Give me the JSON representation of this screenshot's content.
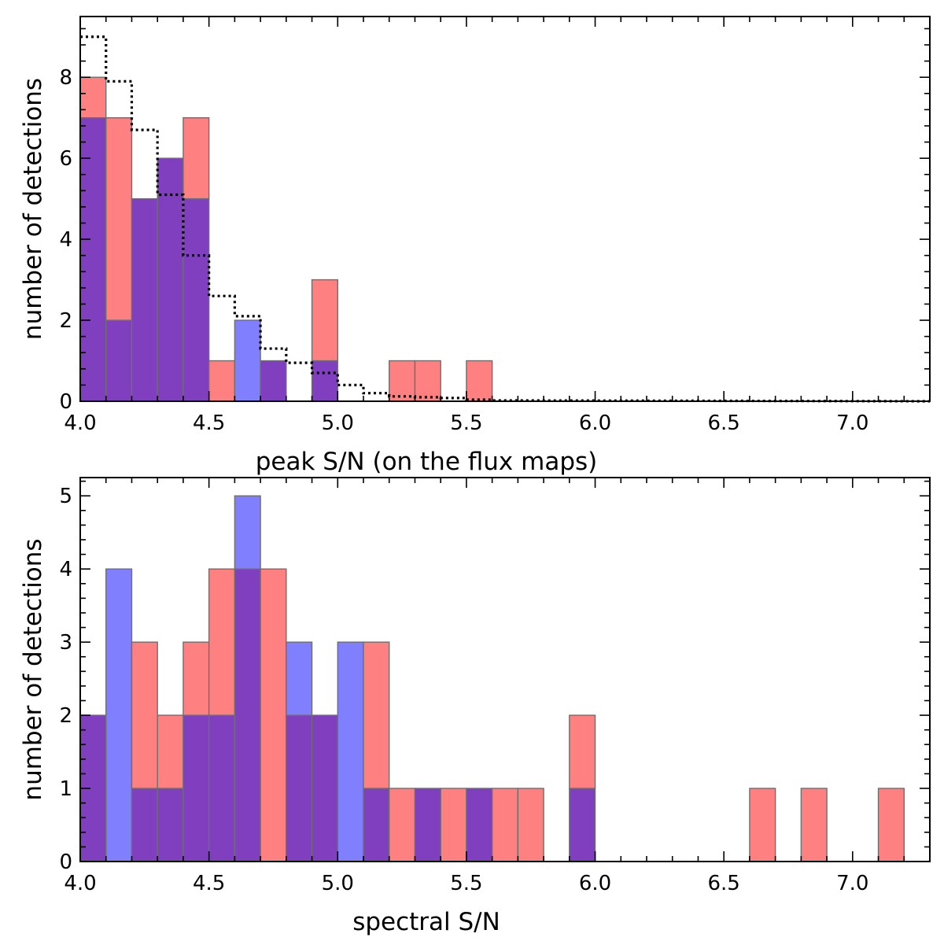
{
  "chart_data": [
    {
      "type": "bar",
      "panel": "top",
      "xlabel": "peak S/N (on the flux maps)",
      "ylabel": "number of detections",
      "xlim": [
        4.0,
        7.3
      ],
      "ylim": [
        0,
        9.5
      ],
      "xticks": [
        "4.0",
        "4.5",
        "5.0",
        "5.5",
        "6.0",
        "6.5",
        "7.0"
      ],
      "yticks": [
        "0",
        "2",
        "4",
        "6",
        "8"
      ],
      "bin_width": 0.1,
      "colors": {
        "red": "#ff8080",
        "blue": "#8080ff",
        "overlap": "#7f3fbf",
        "edge": "#6e6e6e"
      },
      "series": [
        {
          "name": "red",
          "bins": [
            4.0,
            4.1,
            4.2,
            4.3,
            4.4,
            4.5,
            4.6,
            4.7,
            4.8,
            4.9,
            5.0,
            5.1,
            5.2,
            5.3,
            5.4,
            5.5
          ],
          "values": [
            8,
            7,
            5,
            6,
            7,
            1,
            0,
            1,
            0,
            3,
            0,
            0,
            1,
            1,
            0,
            1
          ]
        },
        {
          "name": "blue",
          "bins": [
            4.0,
            4.1,
            4.2,
            4.3,
            4.4,
            4.5,
            4.6,
            4.7,
            4.8,
            4.9
          ],
          "values": [
            7,
            2,
            5,
            6,
            5,
            0,
            2,
            1,
            0,
            1
          ]
        }
      ],
      "dotted_step": {
        "x": [
          4.0,
          4.1,
          4.2,
          4.3,
          4.4,
          4.5,
          4.6,
          4.7,
          4.8,
          4.9,
          5.0,
          5.1,
          5.2,
          5.3,
          5.4,
          5.5,
          5.6
        ],
        "y": [
          9.0,
          7.9,
          6.7,
          5.1,
          3.6,
          2.6,
          2.1,
          1.3,
          0.95,
          0.7,
          0.4,
          0.2,
          0.12,
          0.1,
          0.08,
          0.04,
          0.02
        ]
      }
    },
    {
      "type": "bar",
      "panel": "bottom",
      "xlabel": "spectral S/N",
      "ylabel": "number of detections",
      "xlim": [
        4.0,
        7.3
      ],
      "ylim": [
        0,
        5.25
      ],
      "xticks": [
        "4.0",
        "4.5",
        "5.0",
        "5.5",
        "6.0",
        "6.5",
        "7.0"
      ],
      "yticks": [
        "0",
        "1",
        "2",
        "3",
        "4",
        "5"
      ],
      "bin_width": 0.1,
      "colors": {
        "red": "#ff8080",
        "blue": "#8080ff",
        "overlap": "#7f3fbf",
        "edge": "#6e6e6e"
      },
      "series": [
        {
          "name": "red",
          "bins": [
            4.0,
            4.1,
            4.2,
            4.3,
            4.4,
            4.5,
            4.6,
            4.7,
            4.8,
            4.9,
            5.0,
            5.1,
            5.2,
            5.3,
            5.4,
            5.5,
            5.6,
            5.7,
            5.8,
            5.9,
            6.0,
            6.1,
            6.2,
            6.3,
            6.4,
            6.5,
            6.6,
            6.7,
            6.8,
            6.9,
            7.0,
            7.1
          ],
          "values": [
            2,
            0,
            3,
            2,
            3,
            4,
            4,
            4,
            2,
            2,
            0,
            3,
            1,
            1,
            1,
            1,
            1,
            1,
            0,
            2,
            0,
            0,
            0,
            0,
            0,
            0,
            1,
            0,
            1,
            0,
            0,
            1
          ]
        },
        {
          "name": "blue",
          "bins": [
            4.0,
            4.1,
            4.2,
            4.3,
            4.4,
            4.5,
            4.6,
            4.7,
            4.8,
            4.9,
            5.0,
            5.1,
            5.2,
            5.3,
            5.4,
            5.5,
            5.6,
            5.7,
            5.8,
            5.9
          ],
          "values": [
            2,
            4,
            1,
            1,
            2,
            2,
            5,
            0,
            3,
            2,
            3,
            1,
            0,
            1,
            0,
            1,
            0,
            0,
            0,
            1
          ]
        }
      ]
    }
  ]
}
